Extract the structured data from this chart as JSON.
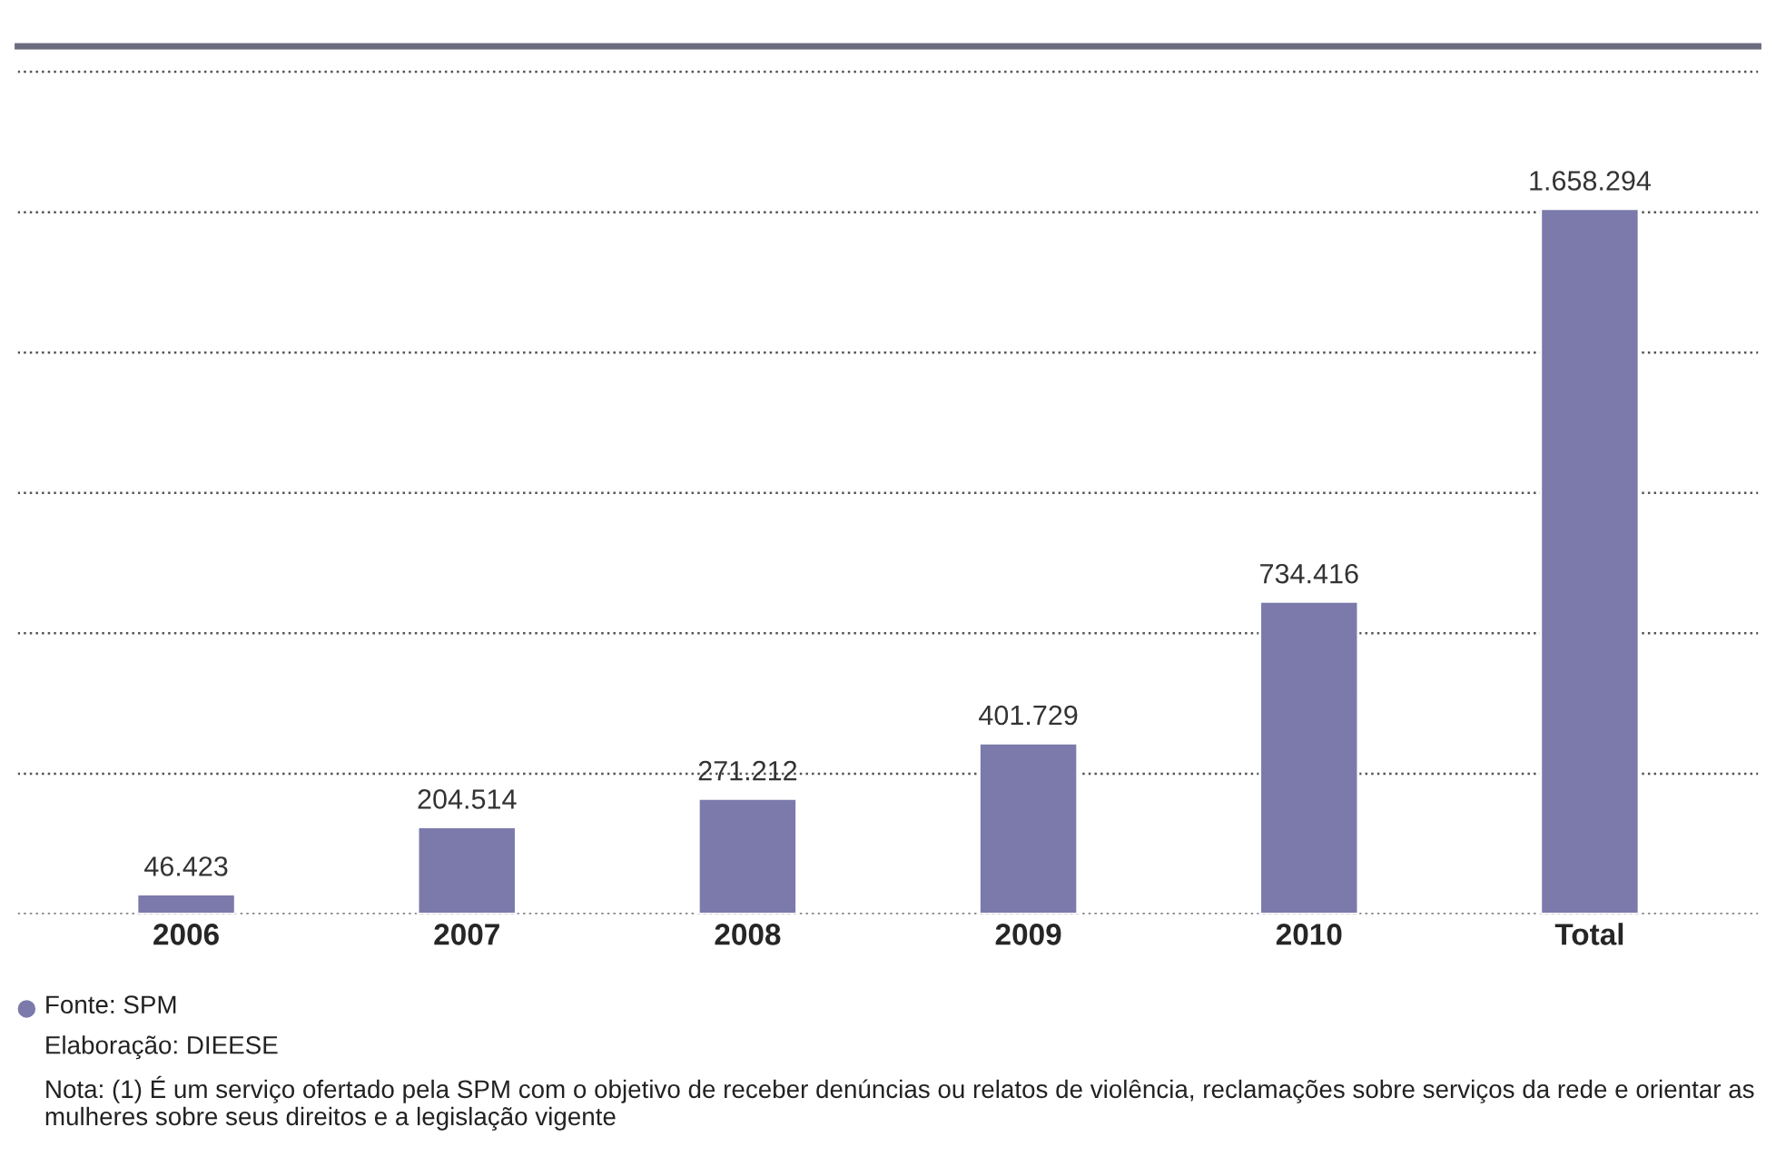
{
  "chart_data": {
    "type": "bar",
    "categories": [
      "2006",
      "2007",
      "2008",
      "2009",
      "2010",
      "Total"
    ],
    "values": [
      46423,
      204514,
      271212,
      401729,
      734416,
      1658294
    ],
    "value_labels": [
      "46.423",
      "204.514",
      "271.212",
      "401.729",
      "734.416",
      "1.658.294"
    ],
    "color": "#7b7aab",
    "ylim": [
      0,
      2040000
    ],
    "yticks": [
      {
        "value": 0,
        "label": null
      },
      {
        "value": 330000,
        "label": null
      },
      {
        "value": 660000,
        "label": null
      },
      {
        "value": 990000,
        "label": null
      },
      {
        "value": 1320000,
        "label": null
      },
      {
        "value": 1650000,
        "label": null
      },
      {
        "value": 1980000,
        "label": null
      }
    ],
    "grid": "y",
    "tick_labels": "x",
    "annotations": [
      "Fonte: SPM",
      "Elaboração: DIEESE",
      "Nota: (1) É um serviço ofertado pela SPM com o objetivo de receber denúncias ou relatos de violência, reclamações sobre serviços da rede e orientar as mulheres sobre seus direitos e a legislação vigente"
    ]
  }
}
